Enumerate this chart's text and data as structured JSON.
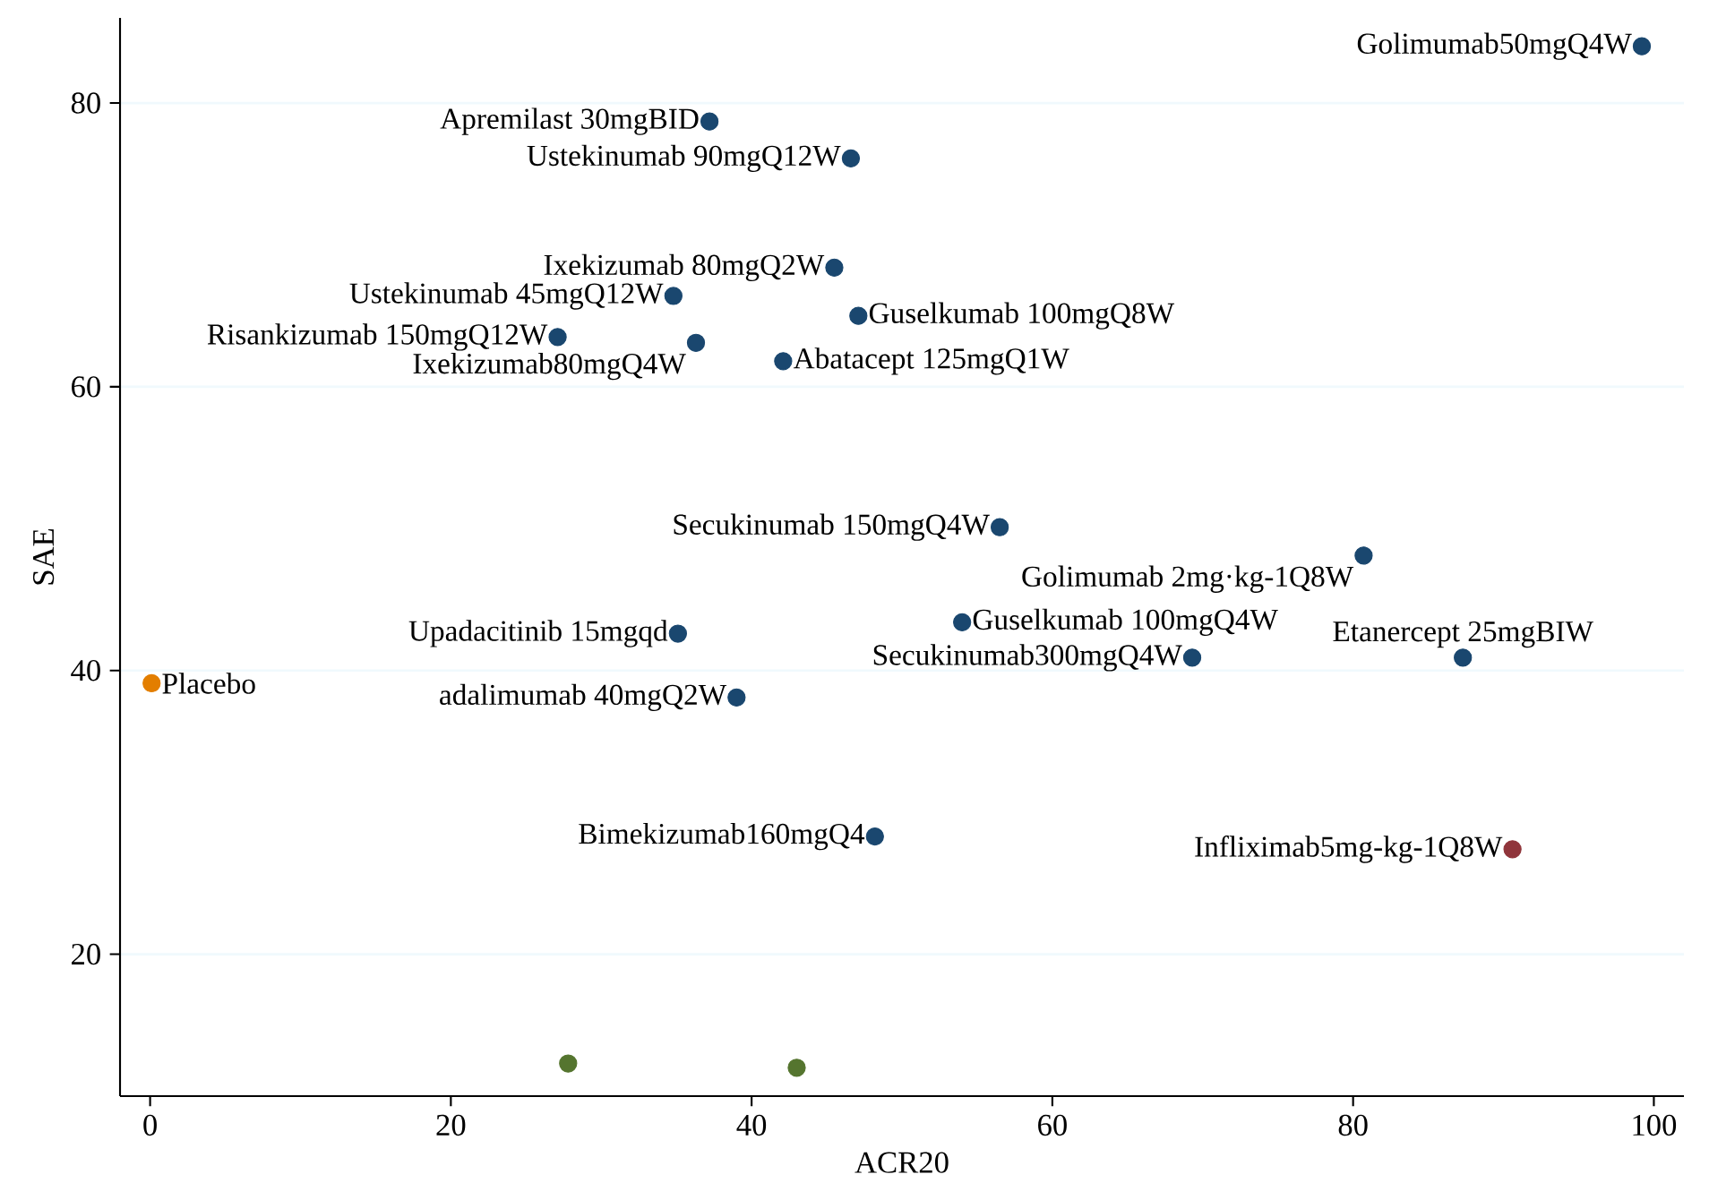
{
  "chart_data": {
    "type": "scatter",
    "xlabel": "ACR20",
    "ylabel": "SAE",
    "xlim": [
      -2,
      102
    ],
    "ylim": [
      10,
      86
    ],
    "xticks": [
      0,
      20,
      40,
      60,
      80,
      100
    ],
    "yticks": [
      20,
      40,
      60,
      80
    ],
    "grid": "y",
    "marker": "circle",
    "series": [
      {
        "name": "Golimumab50mgQ4W",
        "color": "#1a476f",
        "x": [
          99.2
        ],
        "values": [
          84.0
        ]
      },
      {
        "name": "Apremilast 30mgBID",
        "color": "#1a476f",
        "x": [
          37.2
        ],
        "values": [
          78.7
        ]
      },
      {
        "name": "Ustekinumab 90mgQ12W",
        "color": "#1a476f",
        "x": [
          46.6
        ],
        "values": [
          76.1
        ]
      },
      {
        "name": "Ixekizumab 80mgQ2W",
        "color": "#1a476f",
        "x": [
          45.5
        ],
        "values": [
          68.4
        ]
      },
      {
        "name": "Ustekinumab 45mgQ12W",
        "color": "#1a476f",
        "x": [
          34.8
        ],
        "values": [
          66.4
        ]
      },
      {
        "name": "Guselkumab 100mgQ8W",
        "color": "#1a476f",
        "x": [
          47.1
        ],
        "values": [
          65.0
        ]
      },
      {
        "name": "Risankizumab 150mgQ12W",
        "color": "#1a476f",
        "x": [
          27.1
        ],
        "values": [
          63.5
        ]
      },
      {
        "name": "Ixekizumab80mgQ4W",
        "color": "#1a476f",
        "x": [
          36.3
        ],
        "values": [
          63.1
        ]
      },
      {
        "name": "Abatacept 125mgQ1W",
        "color": "#1a476f",
        "x": [
          42.1
        ],
        "values": [
          61.8
        ]
      },
      {
        "name": "Secukinumab 150mgQ4W",
        "color": "#1a476f",
        "x": [
          56.5
        ],
        "values": [
          50.1
        ]
      },
      {
        "name": "Golimumab 2mg·kg-1Q8W",
        "color": "#1a476f",
        "x": [
          80.7
        ],
        "values": [
          48.1
        ]
      },
      {
        "name": "Upadacitinib 15mgqd",
        "color": "#1a476f",
        "x": [
          35.1
        ],
        "values": [
          42.6
        ]
      },
      {
        "name": "Guselkumab 100mgQ4W",
        "color": "#1a476f",
        "x": [
          54.0
        ],
        "values": [
          43.4
        ]
      },
      {
        "name": "Secukinumab300mgQ4W",
        "color": "#1a476f",
        "x": [
          69.3
        ],
        "values": [
          40.9
        ]
      },
      {
        "name": "Etanercept 25mgBIW",
        "color": "#1a476f",
        "x": [
          87.3
        ],
        "values": [
          40.9
        ]
      },
      {
        "name": "Placebo",
        "color": "#e37e00",
        "x": [
          0.1
        ],
        "values": [
          39.1
        ]
      },
      {
        "name": "adalimumab 40mgQ2W",
        "color": "#1a476f",
        "x": [
          39.0
        ],
        "values": [
          38.1
        ]
      },
      {
        "name": "Bimekizumab160mgQ4",
        "color": "#1a476f",
        "x": [
          48.2
        ],
        "values": [
          28.3
        ]
      },
      {
        "name": "Infliximab5mg-kg-1Q8W",
        "color": "#90353b",
        "x": [
          90.6
        ],
        "values": [
          27.4
        ]
      },
      {
        "color": "#55752f",
        "x": [
          27.8,
          43.0
        ],
        "values": [
          12.3,
          12.0
        ]
      }
    ]
  }
}
